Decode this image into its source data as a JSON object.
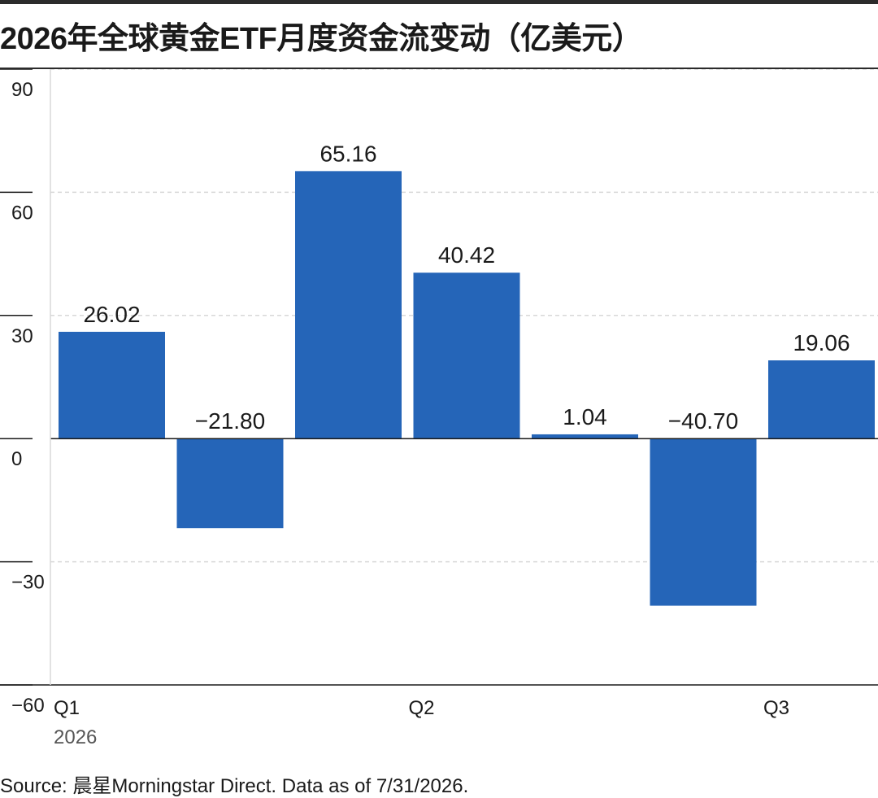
{
  "title": "2026年全球黄金ETF月度资金流变动（亿美元）",
  "source": "Source: 晨星Morningstar Direct. Data as of 7/31/2026.",
  "colors": {
    "bar": "#2565b8",
    "grid": "#d8d8d8",
    "axis": "#1a1a1a",
    "text": "#1a1a1a",
    "subtext": "#555555"
  },
  "chart_data": {
    "type": "bar",
    "title": "2026年全球黄金ETF月度资金流变动（亿美元）",
    "xlabel": "",
    "ylabel": "",
    "ylim": [
      -60,
      90
    ],
    "yticks": [
      90,
      60,
      30,
      0,
      -30,
      -60
    ],
    "ytick_labels": [
      "90",
      "60",
      "30",
      "0",
      "−30",
      "−60"
    ],
    "x_tick_labels": [
      {
        "label": "Q1",
        "at_bar": 0
      },
      {
        "label": "Q2",
        "at_bar": 3
      },
      {
        "label": "Q3",
        "at_bar": 6
      }
    ],
    "year_label": "2026",
    "values": [
      26.02,
      -21.8,
      65.16,
      40.42,
      1.04,
      -40.7,
      19.06
    ],
    "value_labels": [
      "26.02",
      "−21.80",
      "65.16",
      "40.42",
      "1.04",
      "−40.70",
      "19.06"
    ],
    "grid": true,
    "legend": "none"
  }
}
